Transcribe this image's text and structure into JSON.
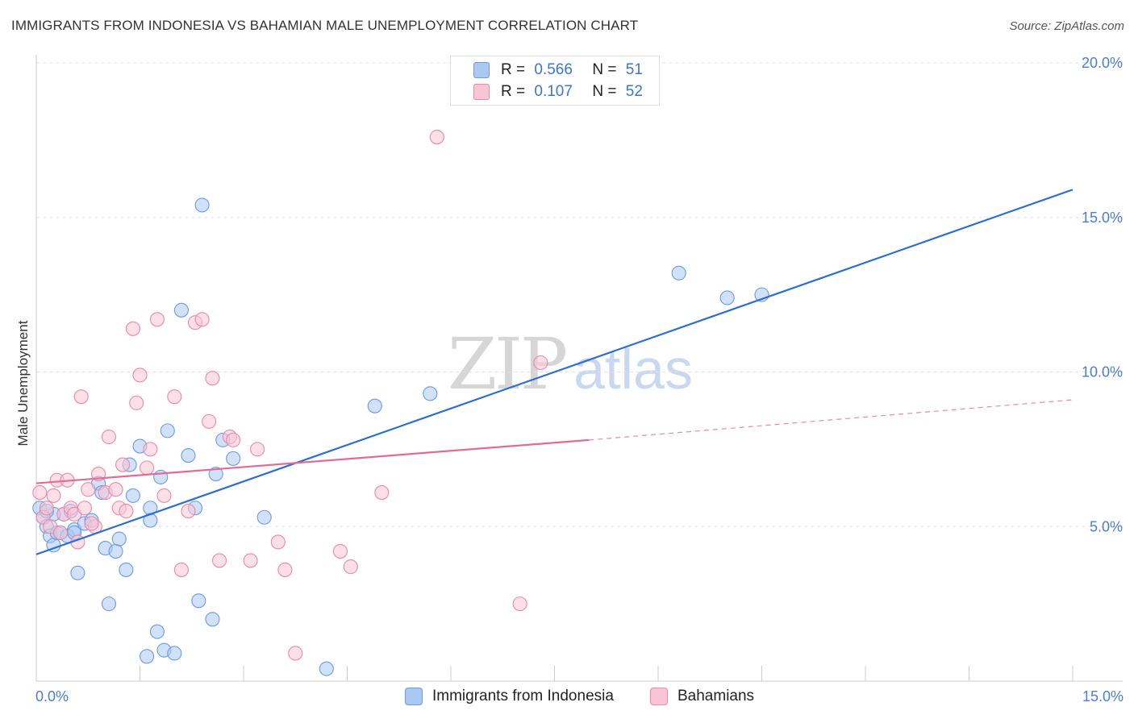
{
  "header": {
    "title": "IMMIGRANTS FROM INDONESIA VS BAHAMIAN MALE UNEMPLOYMENT CORRELATION CHART",
    "source": "Source: ZipAtlas.com"
  },
  "watermark": {
    "zip": "ZIP",
    "atlas": "atlas"
  },
  "legend": {
    "rows": [
      {
        "r_label": "R =",
        "r_value": "0.566",
        "n_label": "N =",
        "n_value": "51",
        "color": "#a9c8f2",
        "border": "#6d9be0"
      },
      {
        "r_label": "R =",
        "r_value": "0.107",
        "n_label": "N =",
        "n_value": "52",
        "color": "#f9c4d4",
        "border": "#e88aa8"
      }
    ]
  },
  "bottom_legend": {
    "items": [
      {
        "label": "Immigrants from Indonesia",
        "color": "#a9c8f2",
        "border": "#6d9be0"
      },
      {
        "label": "Bahamians",
        "color": "#f9c4d4",
        "border": "#e88aa8"
      }
    ]
  },
  "chart_data": {
    "type": "scatter",
    "title": "IMMIGRANTS FROM INDONESIA VS BAHAMIAN MALE UNEMPLOYMENT CORRELATION CHART",
    "xlabel": "",
    "ylabel": "Male Unemployment",
    "xlim": [
      0,
      15
    ],
    "ylim": [
      0,
      20
    ],
    "x_tick_labels": [
      "0.0%",
      "15.0%"
    ],
    "y_ticks": [
      5,
      10,
      15,
      20
    ],
    "y_tick_labels": [
      "5.0%",
      "10.0%",
      "15.0%",
      "20.0%"
    ],
    "grid": true,
    "series": [
      {
        "name": "Immigrants from Indonesia",
        "color": "#6d9be0",
        "fill": "#a9c8f2",
        "trend": {
          "x": [
            0,
            15
          ],
          "y": [
            4.1,
            15.9
          ],
          "color": "#2b6fd0"
        },
        "points": [
          [
            0.05,
            5.6
          ],
          [
            0.1,
            5.3
          ],
          [
            0.15,
            5.0
          ],
          [
            0.2,
            4.7
          ],
          [
            0.25,
            4.4
          ],
          [
            0.3,
            4.8
          ],
          [
            0.35,
            4.8
          ],
          [
            0.4,
            5.4
          ],
          [
            0.45,
            4.7
          ],
          [
            0.5,
            5.5
          ],
          [
            0.55,
            4.9
          ],
          [
            0.6,
            3.5
          ],
          [
            0.7,
            5.1
          ],
          [
            0.8,
            5.2
          ],
          [
            0.9,
            6.4
          ],
          [
            0.95,
            6.1
          ],
          [
            1.0,
            4.3
          ],
          [
            1.05,
            2.5
          ],
          [
            1.15,
            4.2
          ],
          [
            1.2,
            4.6
          ],
          [
            1.3,
            3.6
          ],
          [
            1.35,
            7.0
          ],
          [
            1.4,
            6.0
          ],
          [
            1.5,
            7.6
          ],
          [
            1.6,
            0.8
          ],
          [
            1.65,
            5.6
          ],
          [
            1.65,
            5.2
          ],
          [
            1.75,
            1.6
          ],
          [
            1.8,
            6.6
          ],
          [
            1.85,
            1.0
          ],
          [
            1.9,
            8.1
          ],
          [
            2.0,
            0.9
          ],
          [
            2.1,
            12.0
          ],
          [
            2.2,
            7.3
          ],
          [
            2.3,
            5.6
          ],
          [
            2.35,
            2.6
          ],
          [
            2.4,
            15.4
          ],
          [
            2.55,
            2.0
          ],
          [
            2.6,
            6.7
          ],
          [
            2.7,
            7.8
          ],
          [
            2.85,
            7.2
          ],
          [
            3.3,
            5.3
          ],
          [
            4.2,
            0.4
          ],
          [
            4.9,
            8.9
          ],
          [
            5.7,
            9.3
          ],
          [
            9.3,
            13.2
          ],
          [
            10.0,
            12.4
          ],
          [
            10.5,
            12.5
          ],
          [
            0.25,
            5.4
          ],
          [
            0.15,
            5.5
          ],
          [
            0.55,
            4.8
          ]
        ]
      },
      {
        "name": "Bahamians",
        "color": "#e88aa8",
        "fill": "#f9c4d4",
        "trend": {
          "x": [
            0,
            8
          ],
          "y": [
            6.4,
            7.8
          ],
          "color": "#e06c96",
          "dashed_to": {
            "x": 15,
            "y": 9.1
          }
        },
        "points": [
          [
            0.05,
            6.1
          ],
          [
            0.1,
            5.3
          ],
          [
            0.2,
            5.0
          ],
          [
            0.25,
            6.0
          ],
          [
            0.3,
            6.5
          ],
          [
            0.35,
            4.8
          ],
          [
            0.4,
            5.4
          ],
          [
            0.45,
            6.5
          ],
          [
            0.5,
            5.6
          ],
          [
            0.55,
            5.4
          ],
          [
            0.6,
            4.5
          ],
          [
            0.65,
            9.2
          ],
          [
            0.7,
            5.6
          ],
          [
            0.75,
            6.2
          ],
          [
            0.85,
            5.0
          ],
          [
            0.9,
            6.7
          ],
          [
            1.0,
            6.1
          ],
          [
            1.05,
            7.9
          ],
          [
            1.15,
            6.2
          ],
          [
            1.2,
            5.6
          ],
          [
            1.25,
            7.0
          ],
          [
            1.3,
            5.5
          ],
          [
            1.4,
            11.4
          ],
          [
            1.45,
            9.0
          ],
          [
            1.5,
            9.9
          ],
          [
            1.6,
            6.9
          ],
          [
            1.65,
            7.5
          ],
          [
            1.75,
            11.7
          ],
          [
            1.85,
            6.0
          ],
          [
            2.0,
            9.2
          ],
          [
            2.1,
            3.6
          ],
          [
            2.2,
            5.5
          ],
          [
            2.3,
            11.6
          ],
          [
            2.4,
            11.7
          ],
          [
            2.5,
            8.4
          ],
          [
            2.55,
            9.8
          ],
          [
            2.65,
            3.9
          ],
          [
            2.8,
            7.9
          ],
          [
            2.85,
            7.8
          ],
          [
            3.1,
            3.9
          ],
          [
            3.2,
            7.5
          ],
          [
            3.5,
            4.5
          ],
          [
            3.6,
            3.6
          ],
          [
            3.75,
            0.9
          ],
          [
            4.4,
            4.2
          ],
          [
            4.55,
            3.7
          ],
          [
            5.0,
            6.1
          ],
          [
            5.8,
            17.6
          ],
          [
            7.0,
            2.5
          ],
          [
            7.3,
            10.3
          ],
          [
            0.15,
            5.6
          ],
          [
            0.8,
            5.1
          ]
        ]
      }
    ]
  }
}
